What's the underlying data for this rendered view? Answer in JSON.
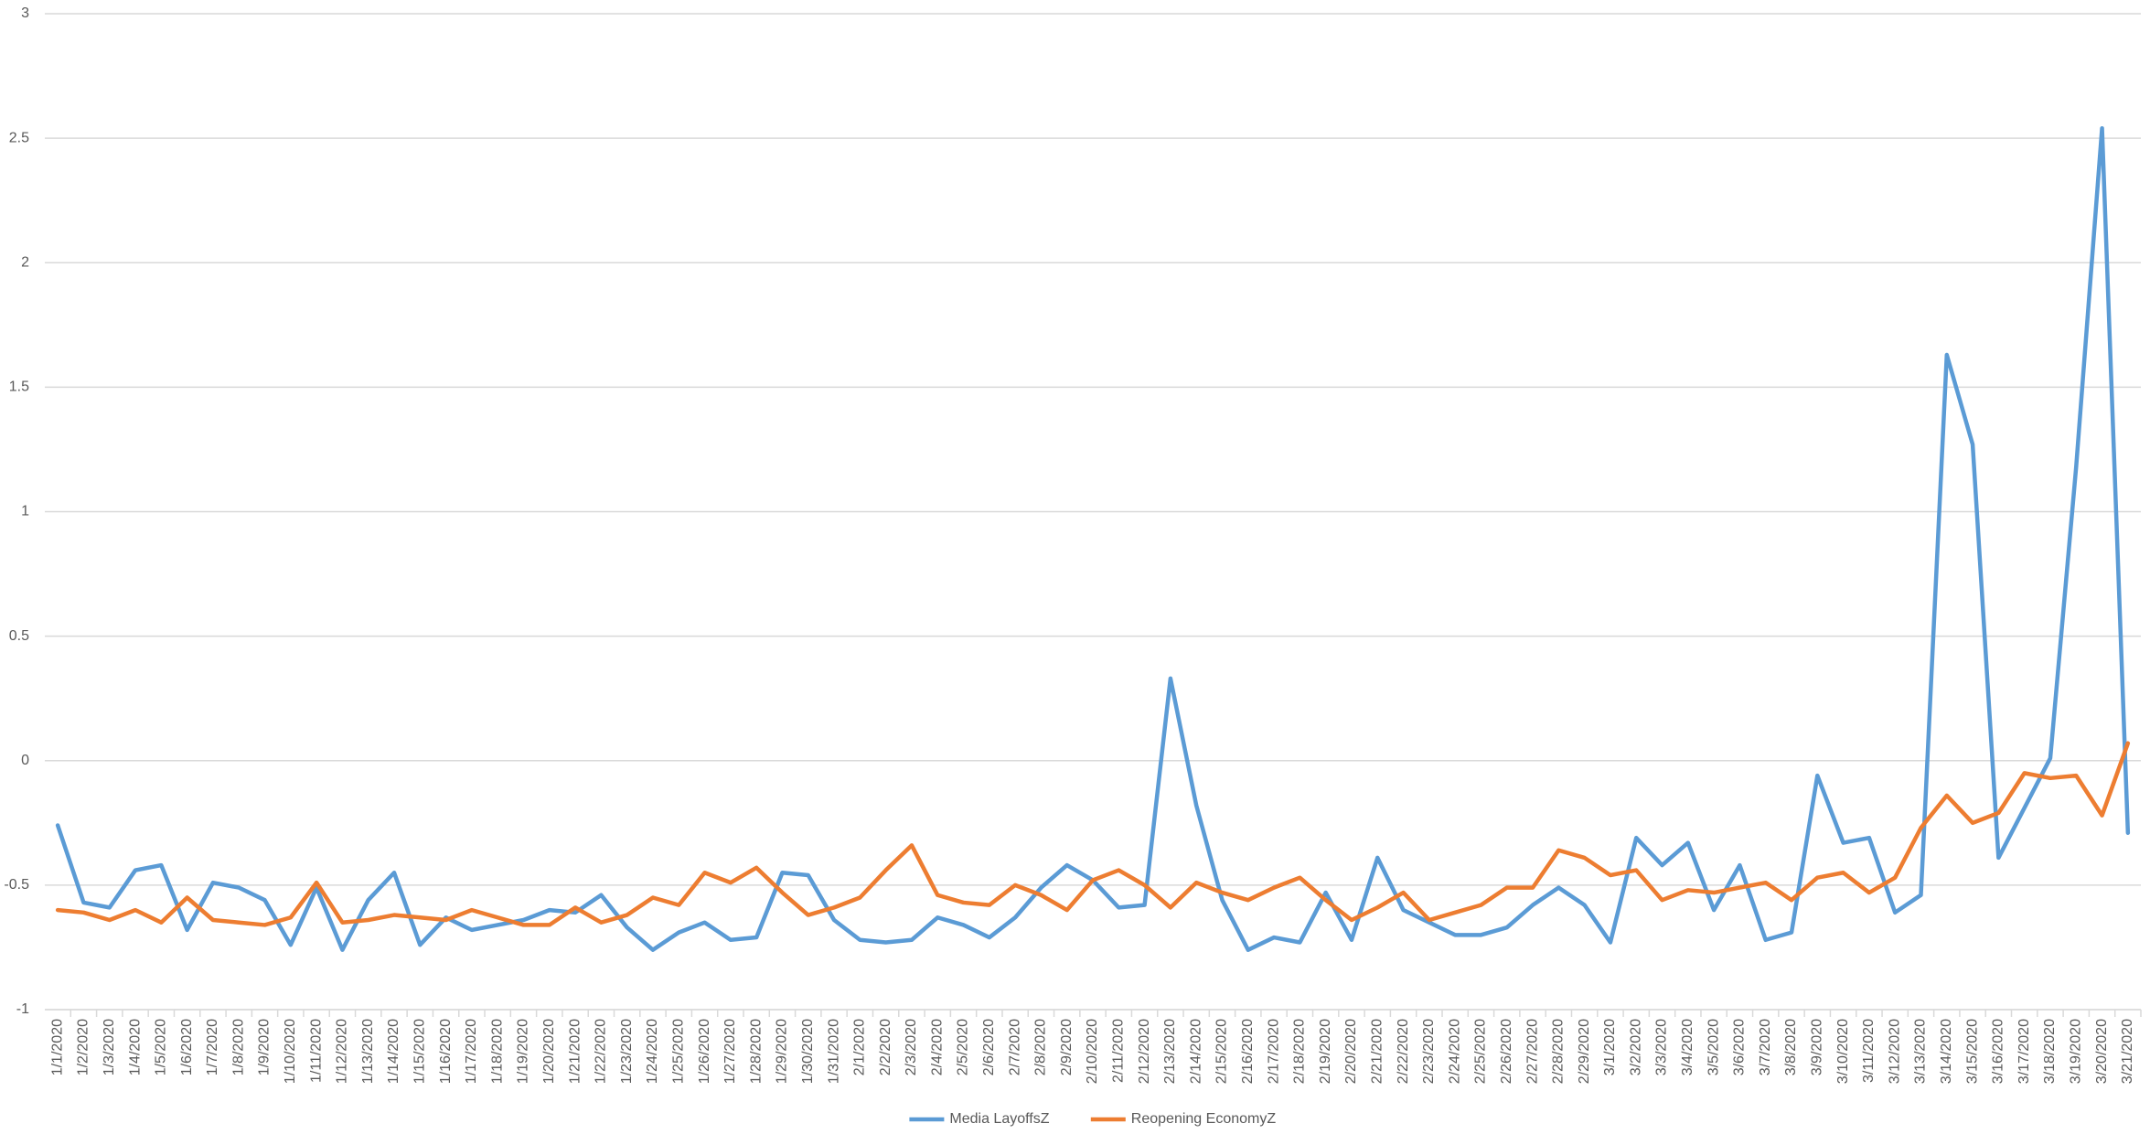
{
  "chart_data": {
    "type": "line",
    "categories": [
      "1/1/2020",
      "1/2/2020",
      "1/3/2020",
      "1/4/2020",
      "1/5/2020",
      "1/6/2020",
      "1/7/2020",
      "1/8/2020",
      "1/9/2020",
      "1/10/2020",
      "1/11/2020",
      "1/12/2020",
      "1/13/2020",
      "1/14/2020",
      "1/15/2020",
      "1/16/2020",
      "1/17/2020",
      "1/18/2020",
      "1/19/2020",
      "1/20/2020",
      "1/21/2020",
      "1/22/2020",
      "1/23/2020",
      "1/24/2020",
      "1/25/2020",
      "1/26/2020",
      "1/27/2020",
      "1/28/2020",
      "1/29/2020",
      "1/30/2020",
      "1/31/2020",
      "2/1/2020",
      "2/2/2020",
      "2/3/2020",
      "2/4/2020",
      "2/5/2020",
      "2/6/2020",
      "2/7/2020",
      "2/8/2020",
      "2/9/2020",
      "2/10/2020",
      "2/11/2020",
      "2/12/2020",
      "2/13/2020",
      "2/14/2020",
      "2/15/2020",
      "2/16/2020",
      "2/17/2020",
      "2/18/2020",
      "2/19/2020",
      "2/20/2020",
      "2/21/2020",
      "2/22/2020",
      "2/23/2020",
      "2/24/2020",
      "2/25/2020",
      "2/26/2020",
      "2/27/2020",
      "2/28/2020",
      "2/29/2020",
      "3/1/2020",
      "3/2/2020",
      "3/3/2020",
      "3/4/2020",
      "3/5/2020",
      "3/6/2020",
      "3/7/2020",
      "3/8/2020",
      "3/9/2020",
      "3/10/2020",
      "3/11/2020",
      "3/12/2020",
      "3/13/2020",
      "3/14/2020",
      "3/15/2020",
      "3/16/2020",
      "3/17/2020",
      "3/18/2020",
      "3/19/2020",
      "3/20/2020",
      "3/21/2020"
    ],
    "series": [
      {
        "name": "Media LayoffsZ",
        "color": "#5b9bd5",
        "values": [
          -0.26,
          -0.57,
          -0.59,
          -0.44,
          -0.42,
          -0.68,
          -0.49,
          -0.51,
          -0.56,
          -0.74,
          -0.51,
          -0.76,
          -0.56,
          -0.45,
          -0.74,
          -0.63,
          -0.68,
          -0.66,
          -0.64,
          -0.6,
          -0.61,
          -0.54,
          -0.67,
          -0.76,
          -0.69,
          -0.65,
          -0.72,
          -0.71,
          -0.45,
          -0.46,
          -0.64,
          -0.72,
          -0.73,
          -0.72,
          -0.63,
          -0.66,
          -0.71,
          -0.63,
          -0.51,
          -0.42,
          -0.48,
          -0.59,
          -0.58,
          0.33,
          -0.18,
          -0.56,
          -0.76,
          -0.71,
          -0.73,
          -0.53,
          -0.72,
          -0.39,
          -0.6,
          -0.65,
          -0.7,
          -0.7,
          -0.67,
          -0.58,
          -0.51,
          -0.58,
          -0.73,
          -0.31,
          -0.42,
          -0.33,
          -0.6,
          -0.42,
          -0.72,
          -0.69,
          -0.06,
          -0.33,
          -0.31,
          -0.61,
          -0.54,
          1.63,
          1.27,
          -0.39,
          -0.19,
          0.01,
          1.18,
          2.54,
          -0.29
        ]
      },
      {
        "name": "Reopening EconomyZ",
        "color": "#ed7d31",
        "values": [
          -0.6,
          -0.61,
          -0.64,
          -0.6,
          -0.65,
          -0.55,
          -0.64,
          -0.65,
          -0.66,
          -0.63,
          -0.49,
          -0.65,
          -0.64,
          -0.62,
          -0.63,
          -0.64,
          -0.6,
          -0.63,
          -0.66,
          -0.66,
          -0.59,
          -0.65,
          -0.62,
          -0.55,
          -0.58,
          -0.45,
          -0.49,
          -0.43,
          -0.53,
          -0.62,
          -0.59,
          -0.55,
          -0.44,
          -0.34,
          -0.54,
          -0.57,
          -0.58,
          -0.5,
          -0.54,
          -0.6,
          -0.48,
          -0.44,
          -0.5,
          -0.59,
          -0.49,
          -0.53,
          -0.56,
          -0.51,
          -0.47,
          -0.56,
          -0.64,
          -0.59,
          -0.53,
          -0.64,
          -0.61,
          -0.58,
          -0.51,
          -0.51,
          -0.36,
          -0.39,
          -0.46,
          -0.44,
          -0.56,
          -0.52,
          -0.53,
          -0.51,
          -0.49,
          -0.56,
          -0.47,
          -0.45,
          -0.53,
          -0.47,
          -0.27,
          -0.14,
          -0.25,
          -0.21,
          -0.05,
          -0.07,
          -0.06,
          -0.22,
          0.07
        ]
      }
    ],
    "ylim": [
      -1,
      3
    ],
    "yticks": [
      -1,
      -0.5,
      0,
      0.5,
      1,
      1.5,
      2,
      2.5,
      3
    ],
    "grid": true,
    "legend": "bottom"
  }
}
